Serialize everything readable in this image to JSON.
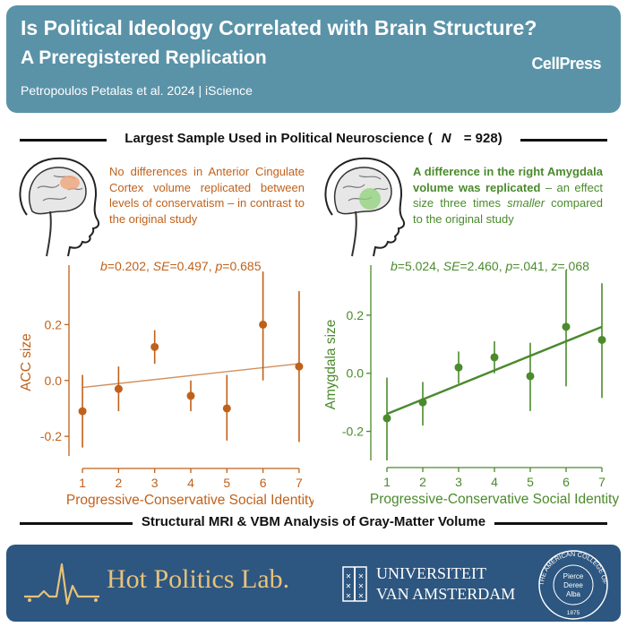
{
  "header": {
    "title_line1": "Is Political Ideology Correlated with Brain Structure?",
    "title_line2": "A Preregistered Replication",
    "authors": "Petropoulos Petalas et al. 2024 | iScience",
    "publisher": "CellPress"
  },
  "band_top": {
    "text_before": "Largest Sample Used in Political Neuroscience (",
    "n_symbol": "N",
    "text_after": " = 928)"
  },
  "left_panel": {
    "description": "No differences in Anterior Cingulate Cortex volume replicated between levels of conservatism – in contrast to the original study"
  },
  "right_panel": {
    "description_bold": "A difference in the right Amygdala volume was replicated",
    "description_rest_1": " – an effect size three times ",
    "description_italic": "smaller",
    "description_rest_2": " compared to the original study"
  },
  "band_bottom": {
    "text": "Structural MRI & VBM Analysis of Gray-Matter Volume"
  },
  "footer": {
    "lab_name": "Hot Politics Lab.",
    "university_line1": "UNIVERSITEIT",
    "university_line2": "VAN AMSTERDAM",
    "college_arc": "THE AMERICAN COLLEGE OF GREECE",
    "college_center": [
      "Pierce",
      "Deree",
      "Alba"
    ],
    "college_year": "1875"
  },
  "colors": {
    "header_bg": "#5a93a8",
    "footer_bg": "#2d5680",
    "acc": "#c0611b",
    "amygdala": "#4b8a2d",
    "lab_gold": "#e8c27a"
  },
  "chart_data": [
    {
      "type": "scatter",
      "title": "",
      "stats": "b=0.202, SE=0.497, p=0.685",
      "xlabel": "Progressive-Conservative Social Identity",
      "ylabel": "ACC size",
      "x": [
        1,
        2,
        3,
        4,
        5,
        6,
        7
      ],
      "y": [
        -0.11,
        -0.03,
        0.12,
        -0.055,
        -0.1,
        0.2,
        0.05
      ],
      "y_low": [
        -0.24,
        -0.11,
        0.06,
        -0.11,
        -0.215,
        0.0,
        -0.22
      ],
      "y_high": [
        0.02,
        0.05,
        0.18,
        0.0,
        0.02,
        0.39,
        0.32
      ],
      "trend": {
        "x": [
          1,
          7
        ],
        "y": [
          -0.025,
          0.06
        ]
      },
      "xticks": [
        1,
        2,
        3,
        4,
        5,
        6,
        7
      ],
      "yticks": [
        -0.2,
        0.0,
        0.2
      ],
      "ytick_labels": [
        "-0.2",
        "0.0",
        "0.2"
      ],
      "xlim": [
        0.75,
        7.25
      ],
      "ylim": [
        -0.27,
        0.4
      ],
      "color": "#c0611b"
    },
    {
      "type": "scatter",
      "title": "",
      "stats": "b=5.024, SE=2.460, p=.041, z=.068",
      "xlabel": "Progressive-Conservative Social Identity",
      "ylabel": "Amygdala size",
      "x": [
        1,
        2,
        3,
        4,
        5,
        6,
        7
      ],
      "y": [
        -0.155,
        -0.1,
        0.02,
        0.055,
        -0.01,
        0.16,
        0.115
      ],
      "y_low": [
        -0.3,
        -0.18,
        -0.035,
        0.0,
        -0.13,
        -0.045,
        -0.085
      ],
      "y_high": [
        -0.015,
        -0.03,
        0.075,
        0.11,
        0.105,
        0.355,
        0.31
      ],
      "trend": {
        "x": [
          1,
          7
        ],
        "y": [
          -0.14,
          0.16
        ]
      },
      "xticks": [
        1,
        2,
        3,
        4,
        5,
        6,
        7
      ],
      "yticks": [
        -0.2,
        0.0,
        0.2
      ],
      "ytick_labels": [
        "-0.2",
        "0.0",
        "0.2"
      ],
      "xlim": [
        0.75,
        7.25
      ],
      "ylim": [
        -0.3,
        0.36
      ],
      "color": "#4b8a2d"
    }
  ]
}
